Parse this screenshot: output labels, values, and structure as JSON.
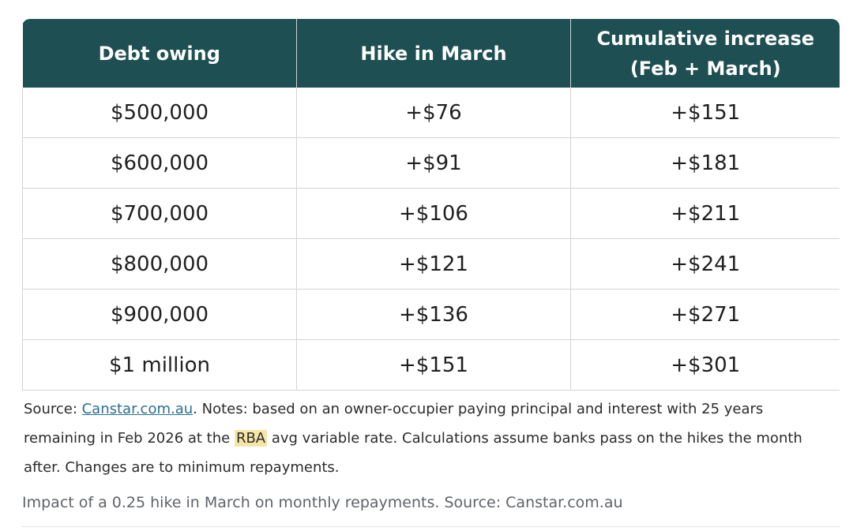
{
  "table": {
    "headers": {
      "col1": "Debt owing",
      "col2": "Hike in March",
      "col3_line1": "Cumulative increase",
      "col3_line2": "(Feb + March)"
    },
    "rows": [
      [
        "$500,000",
        "+$76",
        "+$151"
      ],
      [
        "$600,000",
        "+$91",
        "+$181"
      ],
      [
        "$700,000",
        "+$106",
        "+$211"
      ],
      [
        "$800,000",
        "+$121",
        "+$241"
      ],
      [
        "$900,000",
        "+$136",
        "+$271"
      ],
      [
        "$1 million",
        "+$151",
        "+$301"
      ]
    ]
  },
  "notes": {
    "source_prefix": "Source: ",
    "source_link": "Canstar.com.au",
    "text_part1": ". Notes: based on an owner-occupier paying principal and interest with 25 years remaining in Feb 2026 at the ",
    "highlight": "RBA",
    "text_part2": " avg variable rate. Calculations assume banks pass on the hikes the month after. Changes are to minimum repayments."
  },
  "caption": "Impact of a 0.25 hike in March on monthly repayments. Source: Canstar.com.au",
  "colors": {
    "header_bg": "#1e4f52",
    "header_text": "#ffffff",
    "link": "#2a6f8f",
    "highlight": "#f6e6a6",
    "caption_text": "#5f6368"
  }
}
